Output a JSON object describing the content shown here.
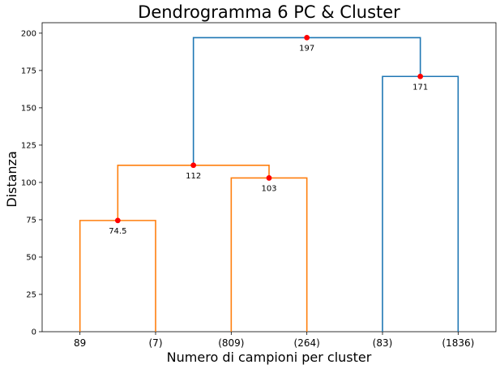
{
  "chart_data": {
    "type": "dendrogram",
    "title": "Dendrogramma 6 PC & Cluster",
    "xlabel": "Numero di campioni per cluster",
    "ylabel": "Distanza",
    "ylim": [
      0,
      207
    ],
    "yticks": [
      0,
      25,
      50,
      75,
      100,
      125,
      150,
      175,
      200
    ],
    "leaves": [
      "89",
      "(7)",
      "(809)",
      "(264)",
      "(83)",
      "(1836)"
    ],
    "colors": {
      "cluster_1": "#ff7f0e",
      "cluster_2": "#1f77b4",
      "link_above": "#1f77b4",
      "marker": "#ff0000"
    },
    "links": [
      {
        "left": 0,
        "right": 1,
        "height": 74.5,
        "color": "cluster_1",
        "label": "74.5"
      },
      {
        "left": 2,
        "right": 3,
        "height": 103,
        "color": "cluster_1",
        "label": "103"
      },
      {
        "left": "L1",
        "right": "L2",
        "height": 111.5,
        "color": "cluster_1",
        "label": "112"
      },
      {
        "left": 4,
        "right": 5,
        "height": 171,
        "color": "cluster_2",
        "label": "171"
      },
      {
        "left": "L3",
        "right": "L4",
        "height": 197,
        "color": "link_above",
        "label": "197"
      }
    ],
    "grid": false
  }
}
